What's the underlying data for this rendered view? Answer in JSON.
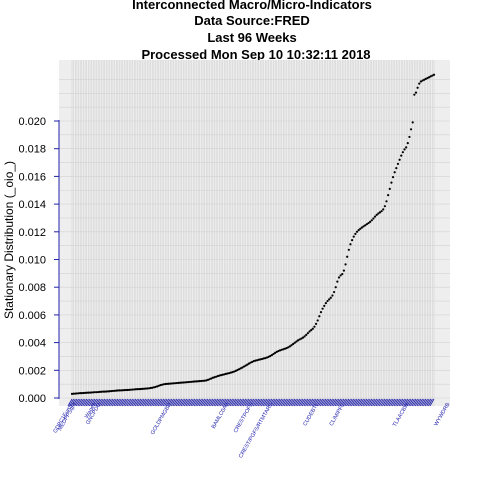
{
  "chart_data": {
    "type": "scatter",
    "title_lines": [
      "Interconnected Macro/Micro-Indicators",
      "Data Source:FRED",
      "Last  96  Weeks",
      "Processed  Mon Sep 10 10:32:11 2018"
    ],
    "ylabel": "Stationary Distribution (_oio_)",
    "xlabel": "",
    "ylim": [
      0,
      0.0235
    ],
    "yticks": [
      0.0,
      0.002,
      0.004,
      0.006,
      0.008,
      0.01,
      0.012,
      0.014,
      0.016,
      0.018,
      0.02
    ],
    "ytick_labels": [
      "0.000",
      "0.002",
      "0.004",
      "0.006",
      "0.008",
      "0.010",
      "0.012",
      "0.014",
      "0.016",
      "0.018",
      "0.020"
    ],
    "grid": true,
    "point_color": "#000000",
    "label_color": "#1b1baa",
    "x_labels": [
      {
        "index": 0,
        "text": "GDPC1EuroF"
      },
      {
        "index": 2,
        "text": "MEDPPSqFt"
      },
      {
        "index": 14,
        "text": "Wages"
      },
      {
        "index": 17,
        "text": "GNCPDO"
      },
      {
        "index": 60,
        "text": "GOLDPMGBD"
      },
      {
        "index": 95,
        "text": "BAMLC0A0"
      },
      {
        "index": 110,
        "text": "CRESTPOFS"
      },
      {
        "index": 122,
        "text": "CREST/PGFS/RTMTARS"
      },
      {
        "index": 150,
        "text": "CUDEBTL"
      },
      {
        "index": 166,
        "text": "CLIMIPFC"
      },
      {
        "index": 205,
        "text": "TLAACBW"
      },
      {
        "index": 230,
        "text": "WYWDRB"
      },
      {
        "index": 280,
        "text": "AccRCvrCh"
      }
    ],
    "series": [
      {
        "values": [
          0.0003,
          0.00031,
          0.00032,
          0.00033,
          0.00034,
          0.00035,
          0.00035,
          0.00036,
          0.00037,
          0.00038,
          0.00039,
          0.00039,
          0.0004,
          0.00041,
          0.00042,
          0.00042,
          0.00043,
          0.00044,
          0.00045,
          0.00046,
          0.00046,
          0.00047,
          0.00048,
          0.00049,
          0.0005,
          0.00051,
          0.00052,
          0.00053,
          0.00054,
          0.00055,
          0.00055,
          0.00056,
          0.00057,
          0.00058,
          0.00058,
          0.00059,
          0.0006,
          0.00061,
          0.00062,
          0.00063,
          0.00064,
          0.00064,
          0.00065,
          0.00066,
          0.00067,
          0.00068,
          0.00069,
          0.0007,
          0.00072,
          0.00074,
          0.00077,
          0.0008,
          0.00084,
          0.00088,
          0.00093,
          0.00096,
          0.00099,
          0.00101,
          0.00102,
          0.00103,
          0.00104,
          0.00105,
          0.00106,
          0.00107,
          0.00108,
          0.00109,
          0.0011,
          0.00111,
          0.00112,
          0.00113,
          0.00114,
          0.00115,
          0.00116,
          0.00117,
          0.00118,
          0.00119,
          0.0012,
          0.00121,
          0.00122,
          0.00123,
          0.00124,
          0.00125,
          0.00127,
          0.00131,
          0.00136,
          0.00141,
          0.00146,
          0.0015,
          0.00154,
          0.00158,
          0.00162,
          0.00165,
          0.00168,
          0.00171,
          0.00174,
          0.00177,
          0.0018,
          0.00183,
          0.00187,
          0.00191,
          0.00196,
          0.00202,
          0.00208,
          0.00214,
          0.0022,
          0.00227,
          0.00234,
          0.00241,
          0.00248,
          0.00255,
          0.00261,
          0.00266,
          0.0027,
          0.00273,
          0.00276,
          0.00279,
          0.00282,
          0.00285,
          0.00288,
          0.00292,
          0.00297,
          0.00303,
          0.0031,
          0.00318,
          0.00326,
          0.00333,
          0.00339,
          0.00344,
          0.00348,
          0.00352,
          0.00356,
          0.0036,
          0.00366,
          0.00373,
          0.00381,
          0.0039,
          0.00399,
          0.00408,
          0.00416,
          0.00423,
          0.00429,
          0.00436,
          0.00445,
          0.00456,
          0.00468,
          0.0048,
          0.0049,
          0.005,
          0.00515,
          0.00535,
          0.0056,
          0.0059,
          0.0062,
          0.00645,
          0.00665,
          0.00685,
          0.007,
          0.00712,
          0.00724,
          0.0074,
          0.00765,
          0.008,
          0.0084,
          0.0087,
          0.00885,
          0.00895,
          0.0092,
          0.00965,
          0.0102,
          0.0107,
          0.0111,
          0.0114,
          0.01165,
          0.01185,
          0.012,
          0.01212,
          0.01222,
          0.01231,
          0.01239,
          0.01247,
          0.01255,
          0.01263,
          0.01272,
          0.01283,
          0.01296,
          0.0131,
          0.01322,
          0.01332,
          0.0134,
          0.01349,
          0.01362,
          0.01385,
          0.0142,
          0.01465,
          0.0151,
          0.01555,
          0.01595,
          0.0163,
          0.0166,
          0.0169,
          0.0172,
          0.0175,
          0.01775,
          0.01795,
          0.0181,
          0.0184,
          0.01885,
          0.0194,
          0.0199,
          0.0219,
          0.02205,
          0.0224,
          0.0227,
          0.02285,
          0.02292,
          0.02298,
          0.02304,
          0.0231,
          0.02316,
          0.02322,
          0.02328,
          0.02334
        ]
      }
    ]
  }
}
